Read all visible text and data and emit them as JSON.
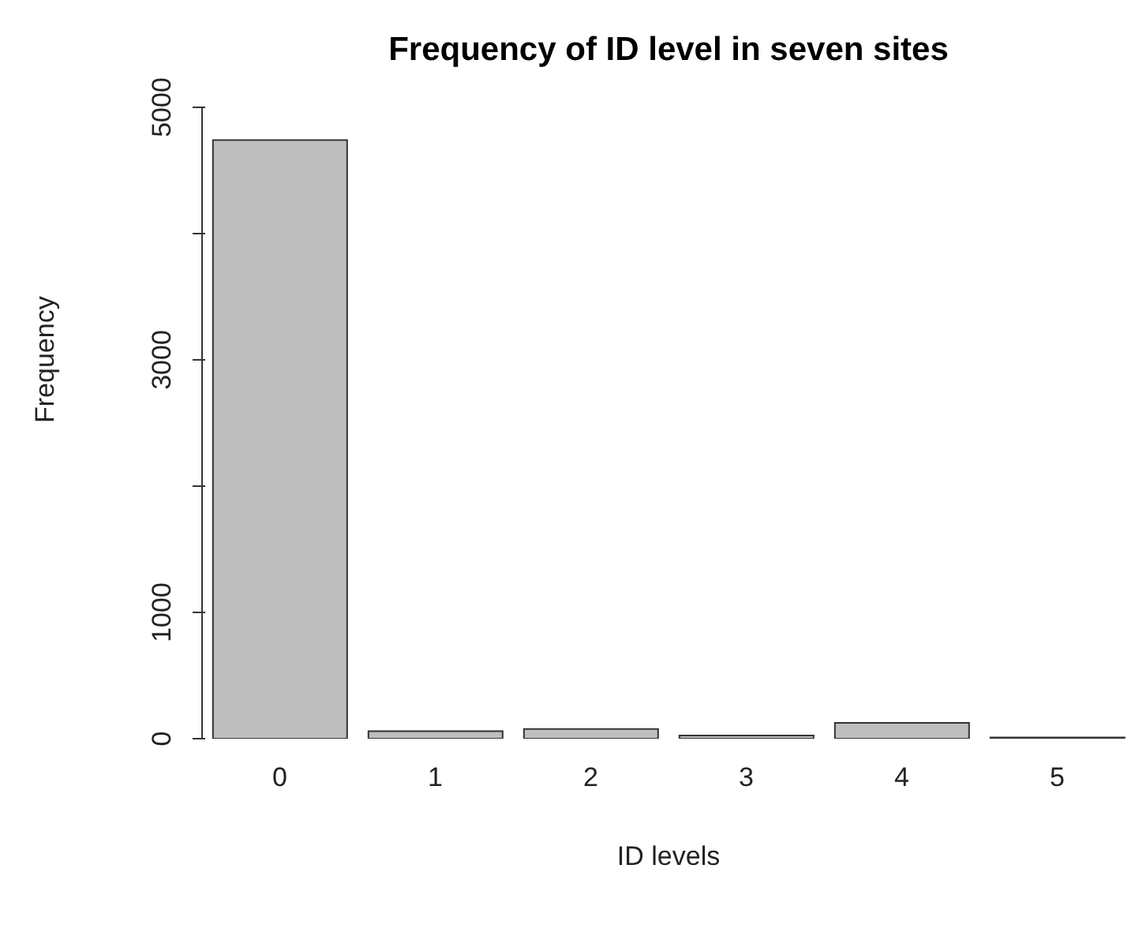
{
  "chart_data": {
    "type": "bar",
    "title": "Frequency of ID level in seven sites",
    "xlabel": "ID levels",
    "ylabel": "Frequency",
    "categories": [
      "0",
      "1",
      "2",
      "3",
      "4",
      "5"
    ],
    "values": [
      4740,
      60,
      77,
      25,
      125,
      10
    ],
    "color": "#bebebe",
    "ylim": [
      0,
      5000
    ],
    "yticks": [
      0,
      1000,
      {
        "value": 2000,
        "label": null
      },
      3000,
      {
        "value": 4000,
        "label": null
      },
      5000
    ],
    "grid": false,
    "legend": false
  }
}
